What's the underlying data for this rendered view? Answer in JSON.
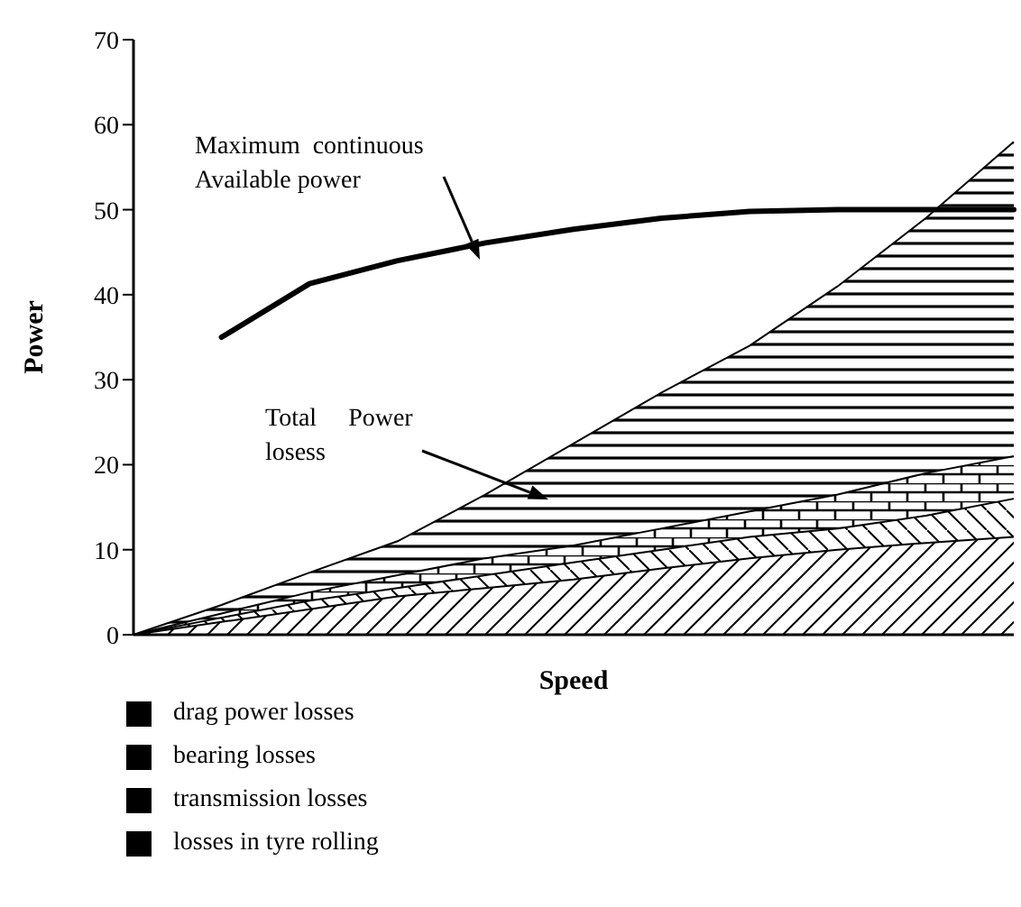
{
  "chart_data": {
    "type": "area",
    "stacked": true,
    "xlabel": "Speed",
    "ylabel": "Power",
    "categories": [
      null,
      null,
      null,
      null,
      null,
      null,
      null,
      null,
      null,
      null,
      null
    ],
    "ylim": [
      0,
      70
    ],
    "yticks": [
      0,
      10,
      20,
      30,
      40,
      50,
      60,
      70
    ],
    "grid": false,
    "legend": "bottom",
    "series": [
      {
        "name": "losses in tyre rolling",
        "color": "#000000",
        "values": [
          0,
          1.5,
          3,
          4.5,
          5.5,
          6.5,
          7.8,
          9,
          10,
          10.8,
          11.5
        ]
      },
      {
        "name": "bearing losses",
        "color": "#000000",
        "values": [
          0,
          0.5,
          1,
          1,
          1.5,
          2,
          2.2,
          2.5,
          2.5,
          3.2,
          4.5
        ]
      },
      {
        "name": "transmission losses",
        "color": "#000000",
        "values": [
          0,
          0.5,
          1,
          1.5,
          2,
          2,
          2.5,
          3,
          4,
          5,
          5
        ]
      },
      {
        "name": "drag power losses",
        "color": "#000000",
        "values": [
          0,
          1,
          2.3,
          4,
          7.5,
          12,
          16,
          19.5,
          24.5,
          30,
          37
        ]
      },
      {
        "type": "line",
        "color": "#000000",
        "values": [
          null,
          35,
          41.3,
          44,
          46.1,
          47.7,
          49,
          49.8,
          50,
          50,
          50
        ]
      }
    ],
    "annotations": [
      "Maximum  continuous\nAvailable power",
      "Total     Power\nlosess"
    ]
  }
}
